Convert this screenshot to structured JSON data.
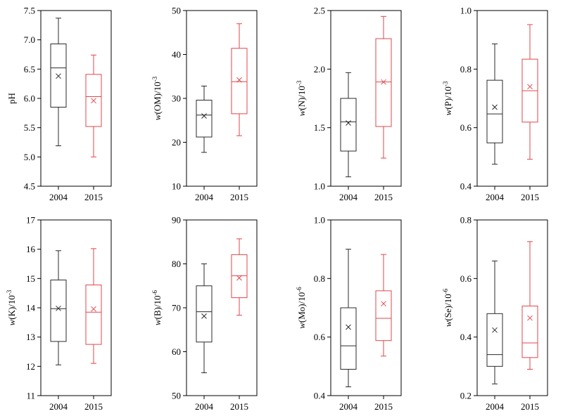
{
  "colors": {
    "year_2004": "#2b2b2b",
    "year_2015": "#e0474c",
    "axis": "#000000"
  },
  "chart_data": [
    {
      "type": "box",
      "ylabel": {
        "main": "pH",
        "sup": ""
      },
      "ylim": [
        4.5,
        7.5
      ],
      "yticks": [
        "4.5",
        "5.0",
        "5.5",
        "6.0",
        "6.5",
        "7.0",
        "7.5"
      ],
      "categories": [
        "2004",
        "2015"
      ],
      "boxes": [
        {
          "category": "2004",
          "min": 5.19,
          "q1": 5.85,
          "median": 6.52,
          "q3": 6.93,
          "max": 7.37,
          "mean": 6.38
        },
        {
          "category": "2015",
          "min": 5.0,
          "q1": 5.52,
          "median": 6.03,
          "q3": 6.41,
          "max": 6.74,
          "mean": 5.96
        }
      ]
    },
    {
      "type": "box",
      "ylabel": {
        "main": "w(OM)/10",
        "sup": "-3"
      },
      "ylim": [
        10,
        50
      ],
      "yticks": [
        "10",
        "20",
        "30",
        "40",
        "50"
      ],
      "categories": [
        "2004",
        "2015"
      ],
      "boxes": [
        {
          "category": "2004",
          "min": 17.7,
          "q1": 21.2,
          "median": 26.2,
          "q3": 29.6,
          "max": 32.8,
          "mean": 26.0
        },
        {
          "category": "2015",
          "min": 21.5,
          "q1": 26.5,
          "median": 33.8,
          "q3": 41.4,
          "max": 47.0,
          "mean": 34.2
        }
      ]
    },
    {
      "type": "box",
      "ylabel": {
        "main": "w(N)/10",
        "sup": "-3"
      },
      "ylim": [
        1.0,
        2.5
      ],
      "yticks": [
        "1.0",
        "1.5",
        "2.0",
        "2.5"
      ],
      "categories": [
        "2004",
        "2015"
      ],
      "boxes": [
        {
          "category": "2004",
          "min": 1.08,
          "q1": 1.3,
          "median": 1.55,
          "q3": 1.75,
          "max": 1.97,
          "mean": 1.54
        },
        {
          "category": "2015",
          "min": 1.24,
          "q1": 1.51,
          "median": 1.89,
          "q3": 2.26,
          "max": 2.45,
          "mean": 1.89
        }
      ]
    },
    {
      "type": "box",
      "ylabel": {
        "main": "w(P)/10",
        "sup": "-3"
      },
      "ylim": [
        0.4,
        1.0
      ],
      "yticks": [
        "0.4",
        "0.6",
        "0.8",
        "1.0"
      ],
      "categories": [
        "2004",
        "2015"
      ],
      "boxes": [
        {
          "category": "2004",
          "min": 0.475,
          "q1": 0.548,
          "median": 0.647,
          "q3": 0.762,
          "max": 0.886,
          "mean": 0.67
        },
        {
          "category": "2015",
          "min": 0.492,
          "q1": 0.619,
          "median": 0.726,
          "q3": 0.834,
          "max": 0.952,
          "mean": 0.74
        }
      ]
    },
    {
      "type": "box",
      "ylabel": {
        "main": "w(K)/10",
        "sup": "-3"
      },
      "ylim": [
        11,
        17
      ],
      "yticks": [
        "11",
        "12",
        "13",
        "14",
        "15",
        "16",
        "17"
      ],
      "categories": [
        "2004",
        "2015"
      ],
      "boxes": [
        {
          "category": "2004",
          "min": 12.05,
          "q1": 12.85,
          "median": 13.97,
          "q3": 14.95,
          "max": 15.95,
          "mean": 13.98
        },
        {
          "category": "2015",
          "min": 12.1,
          "q1": 12.75,
          "median": 13.85,
          "q3": 14.78,
          "max": 16.02,
          "mean": 13.96
        }
      ]
    },
    {
      "type": "box",
      "ylabel": {
        "main": "w(B)/10",
        "sup": "-6"
      },
      "ylim": [
        50,
        90
      ],
      "yticks": [
        "50",
        "60",
        "70",
        "80",
        "90"
      ],
      "categories": [
        "2004",
        "2015"
      ],
      "boxes": [
        {
          "category": "2004",
          "min": 55.2,
          "q1": 62.2,
          "median": 69.1,
          "q3": 75.0,
          "max": 80.0,
          "mean": 68.1
        },
        {
          "category": "2015",
          "min": 68.3,
          "q1": 72.3,
          "median": 77.3,
          "q3": 82.1,
          "max": 85.7,
          "mean": 76.8
        }
      ]
    },
    {
      "type": "box",
      "ylabel": {
        "main": "w(Mo)/10",
        "sup": "-6"
      },
      "ylim": [
        0.4,
        1.0
      ],
      "yticks": [
        "0.4",
        "0.6",
        "0.8",
        "1.0"
      ],
      "categories": [
        "2004",
        "2015"
      ],
      "boxes": [
        {
          "category": "2004",
          "min": 0.43,
          "q1": 0.49,
          "median": 0.57,
          "q3": 0.7,
          "max": 0.9,
          "mean": 0.634
        },
        {
          "category": "2015",
          "min": 0.535,
          "q1": 0.588,
          "median": 0.664,
          "q3": 0.758,
          "max": 0.882,
          "mean": 0.714
        }
      ]
    },
    {
      "type": "box",
      "ylabel": {
        "main": "w(Se)/10",
        "sup": "-6"
      },
      "ylim": [
        0.2,
        0.8
      ],
      "yticks": [
        "0.2",
        "0.4",
        "0.6",
        "0.8"
      ],
      "categories": [
        "2004",
        "2015"
      ],
      "boxes": [
        {
          "category": "2004",
          "min": 0.24,
          "q1": 0.3,
          "median": 0.34,
          "q3": 0.48,
          "max": 0.66,
          "mean": 0.424
        },
        {
          "category": "2015",
          "min": 0.29,
          "q1": 0.33,
          "median": 0.38,
          "q3": 0.506,
          "max": 0.726,
          "mean": 0.465
        }
      ]
    }
  ]
}
